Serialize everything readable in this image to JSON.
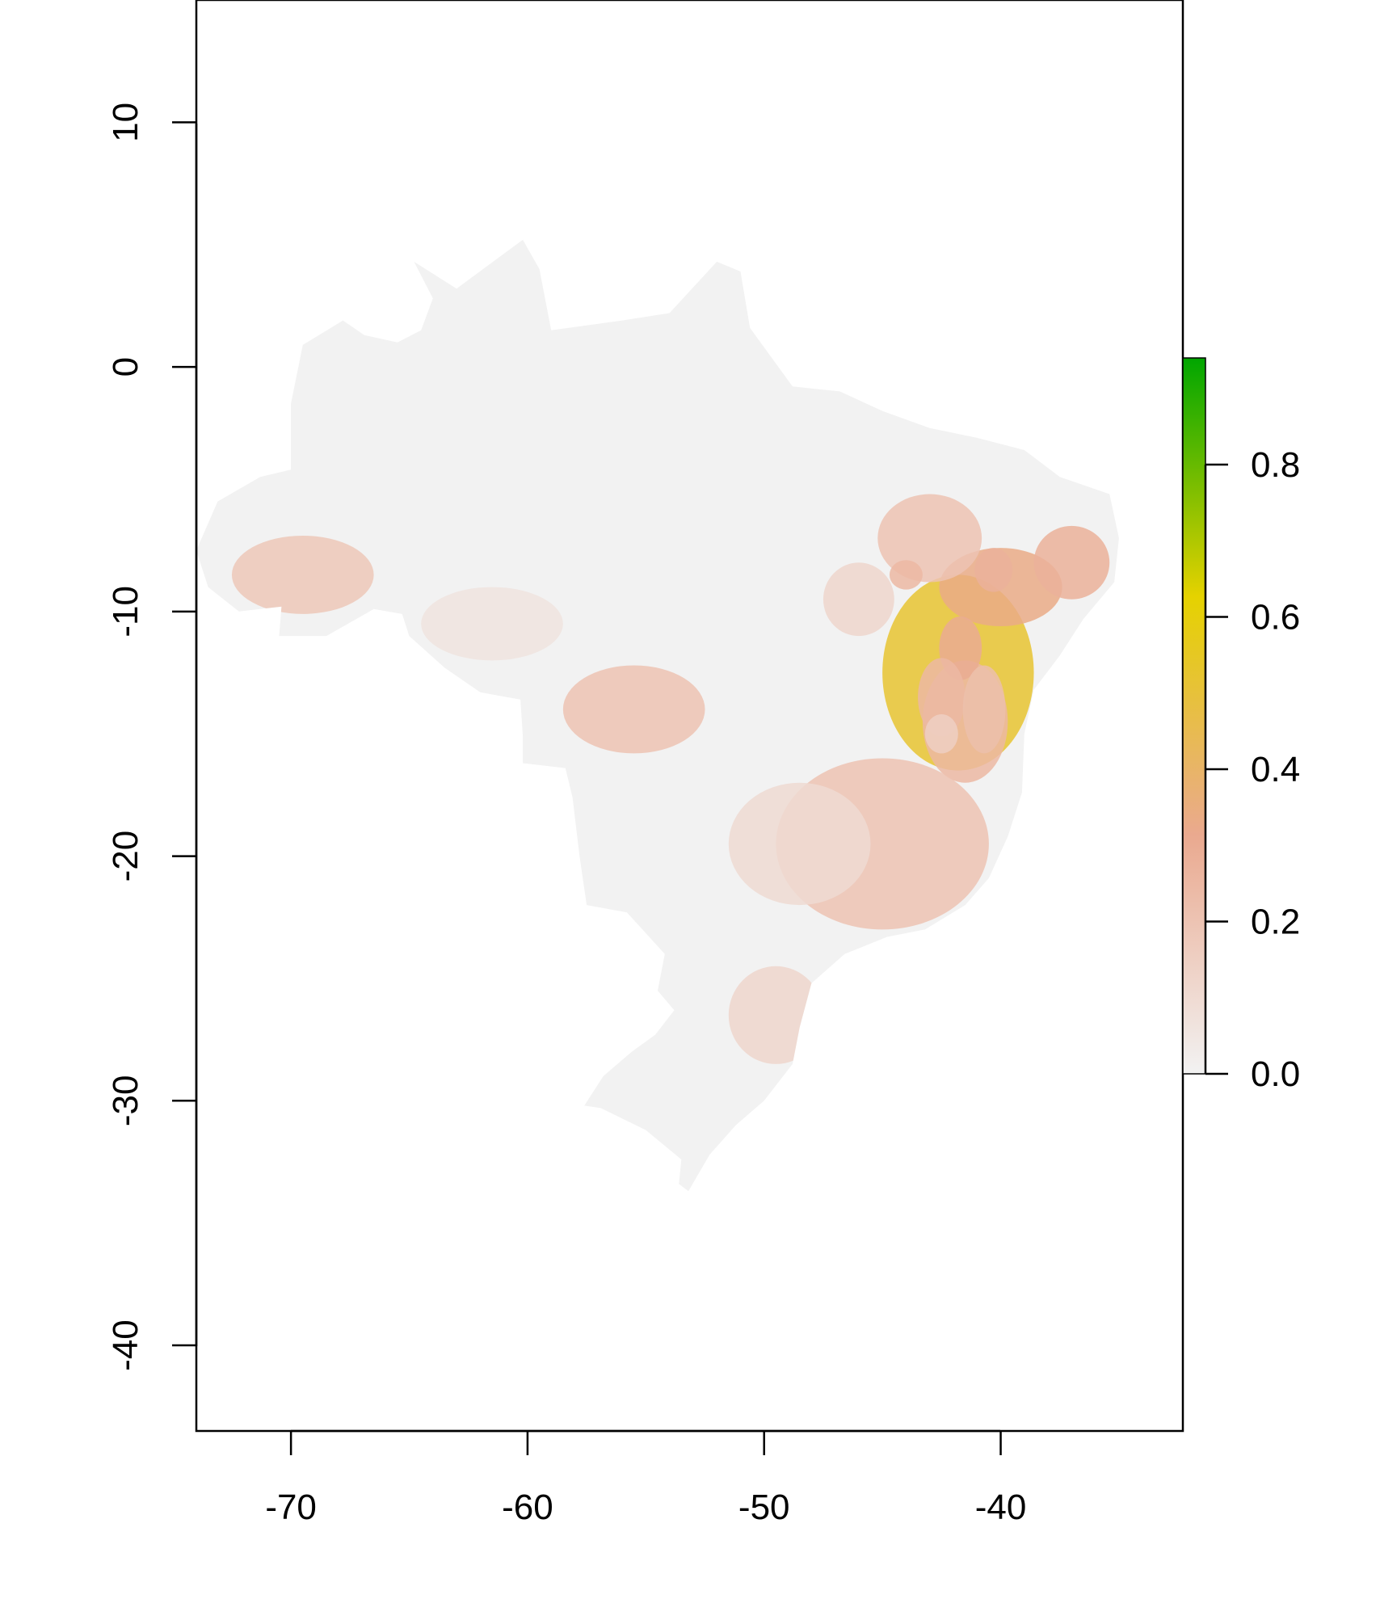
{
  "chart_data": {
    "type": "heatmap",
    "title": "",
    "xlabel": "",
    "ylabel": "",
    "xlim": [
      -74,
      -32.3
    ],
    "ylim": [
      -43.5,
      15.0
    ],
    "x_ticks": [
      {
        "value": -70,
        "label": "-70"
      },
      {
        "value": -60,
        "label": "-60"
      },
      {
        "value": -50,
        "label": "-50"
      },
      {
        "value": -40,
        "label": "-40"
      }
    ],
    "y_ticks": [
      {
        "value": 10,
        "label": "10"
      },
      {
        "value": 0,
        "label": "0"
      },
      {
        "value": -10,
        "label": "-10"
      },
      {
        "value": -20,
        "label": "-20"
      },
      {
        "value": -30,
        "label": "-30"
      },
      {
        "value": -40,
        "label": "-40"
      }
    ],
    "colorbar": {
      "range": [
        0,
        0.94
      ],
      "ticks": [
        {
          "value": 0.0,
          "label": "0.0"
        },
        {
          "value": 0.2,
          "label": "0.2"
        },
        {
          "value": 0.4,
          "label": "0.4"
        },
        {
          "value": 0.6,
          "label": "0.6"
        },
        {
          "value": 0.8,
          "label": "0.8"
        }
      ],
      "colors": [
        "#f2f2f2",
        "#eaa98f",
        "#e5d200",
        "#00a600"
      ]
    },
    "region_outline_lonlat": [
      [
        -64.8,
        4.3
      ],
      [
        -63.0,
        3.2
      ],
      [
        -60.2,
        5.2
      ],
      [
        -59.5,
        4.0
      ],
      [
        -59.0,
        1.5
      ],
      [
        -56.0,
        1.9
      ],
      [
        -54.0,
        2.2
      ],
      [
        -52.0,
        4.3
      ],
      [
        -51.0,
        3.9
      ],
      [
        -50.6,
        1.6
      ],
      [
        -48.8,
        -0.8
      ],
      [
        -46.8,
        -1.0
      ],
      [
        -45.0,
        -1.8
      ],
      [
        -43.0,
        -2.5
      ],
      [
        -41.0,
        -2.9
      ],
      [
        -39.0,
        -3.4
      ],
      [
        -37.5,
        -4.5
      ],
      [
        -35.4,
        -5.2
      ],
      [
        -35.0,
        -7.0
      ],
      [
        -35.2,
        -8.8
      ],
      [
        -36.5,
        -10.3
      ],
      [
        -37.5,
        -11.8
      ],
      [
        -38.6,
        -13.2
      ],
      [
        -39.0,
        -15.0
      ],
      [
        -39.1,
        -17.4
      ],
      [
        -39.7,
        -19.2
      ],
      [
        -40.5,
        -20.9
      ],
      [
        -41.5,
        -22.0
      ],
      [
        -43.2,
        -23.0
      ],
      [
        -44.8,
        -23.3
      ],
      [
        -46.6,
        -24.0
      ],
      [
        -48.0,
        -25.2
      ],
      [
        -48.5,
        -27.0
      ],
      [
        -48.8,
        -28.5
      ],
      [
        -50.0,
        -30.0
      ],
      [
        -51.2,
        -31.0
      ],
      [
        -52.3,
        -32.2
      ],
      [
        -53.2,
        -33.7
      ],
      [
        -53.6,
        -33.4
      ],
      [
        -53.5,
        -32.4
      ],
      [
        -55.0,
        -31.2
      ],
      [
        -56.9,
        -30.3
      ],
      [
        -57.6,
        -30.2
      ],
      [
        -56.8,
        -29.0
      ],
      [
        -55.6,
        -28.0
      ],
      [
        -54.6,
        -27.3
      ],
      [
        -53.8,
        -26.3
      ],
      [
        -54.5,
        -25.5
      ],
      [
        -54.2,
        -24.0
      ],
      [
        -55.8,
        -22.3
      ],
      [
        -57.5,
        -22.0
      ],
      [
        -57.8,
        -20.0
      ],
      [
        -58.1,
        -17.6
      ],
      [
        -58.4,
        -16.4
      ],
      [
        -60.2,
        -16.2
      ],
      [
        -60.2,
        -15.1
      ],
      [
        -60.3,
        -13.6
      ],
      [
        -62.0,
        -13.3
      ],
      [
        -63.5,
        -12.3
      ],
      [
        -65.0,
        -11.0
      ],
      [
        -65.3,
        -10.1
      ],
      [
        -66.5,
        -9.9
      ],
      [
        -68.5,
        -11.0
      ],
      [
        -70.5,
        -11.0
      ],
      [
        -70.4,
        -9.8
      ],
      [
        -72.2,
        -10.0
      ],
      [
        -73.5,
        -9.0
      ],
      [
        -74.0,
        -7.5
      ],
      [
        -73.1,
        -5.5
      ],
      [
        -71.3,
        -4.5
      ],
      [
        -70.0,
        -4.2
      ],
      [
        -70.0,
        -1.5
      ],
      [
        -69.5,
        0.9
      ],
      [
        -67.8,
        1.9
      ],
      [
        -66.9,
        1.3
      ],
      [
        -65.5,
        1.0
      ],
      [
        -64.5,
        1.5
      ],
      [
        -64.0,
        2.8
      ],
      [
        -64.8,
        4.3
      ]
    ],
    "suitability_hotspots": [
      {
        "lon": -41.8,
        "lat": -12.5,
        "sx": 3.2,
        "sy": 4.0,
        "value": 0.52
      },
      {
        "lon": -41.5,
        "lat": -14.5,
        "sx": 1.8,
        "sy": 2.5,
        "value": 0.25
      },
      {
        "lon": -40.0,
        "lat": -9.0,
        "sx": 2.6,
        "sy": 1.6,
        "value": 0.33
      },
      {
        "lon": -37.0,
        "lat": -8.0,
        "sx": 1.6,
        "sy": 1.5,
        "value": 0.28
      },
      {
        "lon": -43.0,
        "lat": -7.0,
        "sx": 2.2,
        "sy": 1.8,
        "value": 0.2
      },
      {
        "lon": -40.3,
        "lat": -8.3,
        "sx": 0.8,
        "sy": 0.9,
        "value": 0.28
      },
      {
        "lon": -41.7,
        "lat": -11.5,
        "sx": 0.9,
        "sy": 1.3,
        "value": 0.3
      },
      {
        "lon": -42.5,
        "lat": -13.5,
        "sx": 1.0,
        "sy": 1.6,
        "value": 0.25
      },
      {
        "lon": -40.7,
        "lat": -14.0,
        "sx": 0.9,
        "sy": 1.8,
        "value": 0.22
      },
      {
        "lon": -42.5,
        "lat": -15.0,
        "sx": 0.7,
        "sy": 0.8,
        "value": 0.15
      },
      {
        "lon": -44.0,
        "lat": -8.5,
        "sx": 0.7,
        "sy": 0.6,
        "value": 0.25
      },
      {
        "lon": -45.0,
        "lat": -19.5,
        "sx": 4.5,
        "sy": 3.5,
        "value": 0.2
      },
      {
        "lon": -48.5,
        "lat": -19.5,
        "sx": 3.0,
        "sy": 2.5,
        "value": 0.1
      },
      {
        "lon": -55.5,
        "lat": -14.0,
        "sx": 3.0,
        "sy": 1.8,
        "value": 0.2
      },
      {
        "lon": -69.5,
        "lat": -8.5,
        "sx": 3.0,
        "sy": 1.6,
        "value": 0.18
      },
      {
        "lon": -61.5,
        "lat": -10.5,
        "sx": 3.0,
        "sy": 1.5,
        "value": 0.06
      },
      {
        "lon": -49.5,
        "lat": -26.5,
        "sx": 2.0,
        "sy": 2.0,
        "value": 0.12
      },
      {
        "lon": -46.0,
        "lat": -9.5,
        "sx": 1.5,
        "sy": 1.5,
        "value": 0.12
      }
    ]
  }
}
